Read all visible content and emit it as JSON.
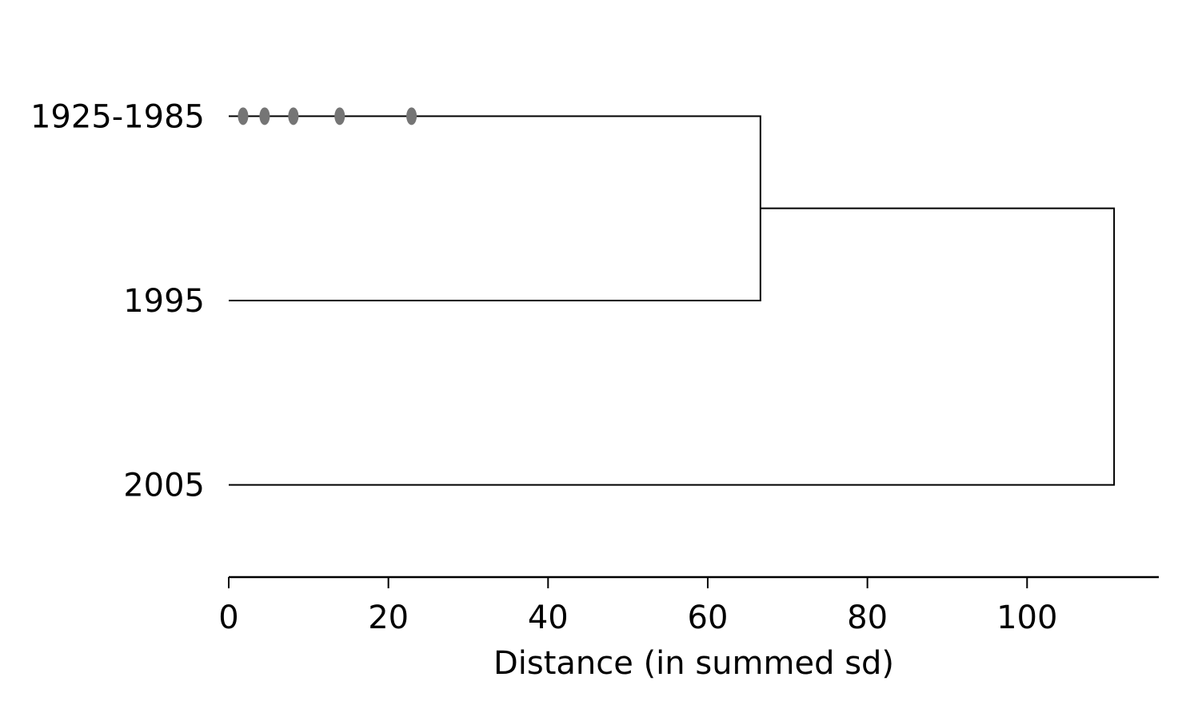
{
  "chart_data": {
    "type": "dendrogram",
    "orientation": "horizontal",
    "title": "",
    "xlabel": "Distance (in summed sd)",
    "ylabel": "",
    "xlim": [
      0,
      116.5
    ],
    "xticks": [
      0,
      20,
      40,
      60,
      80,
      100
    ],
    "xtick_labels": [
      "0",
      "20",
      "40",
      "60",
      "80",
      "100"
    ],
    "leaves": [
      "1925-1985",
      "1995",
      "2005"
    ],
    "merges": [
      {
        "children": [
          "1925-1985",
          "1995"
        ],
        "distance": 66.6
      },
      {
        "children": [
          "cluster-1",
          "2005"
        ],
        "distance": 110.9
      }
    ],
    "collapsed_merge_points": {
      "leaf": "1925-1985",
      "distances": [
        1.8,
        4.5,
        8.1,
        13.9,
        22.9
      ],
      "color": "#757575"
    },
    "line_color": "#000000",
    "grid": false
  }
}
